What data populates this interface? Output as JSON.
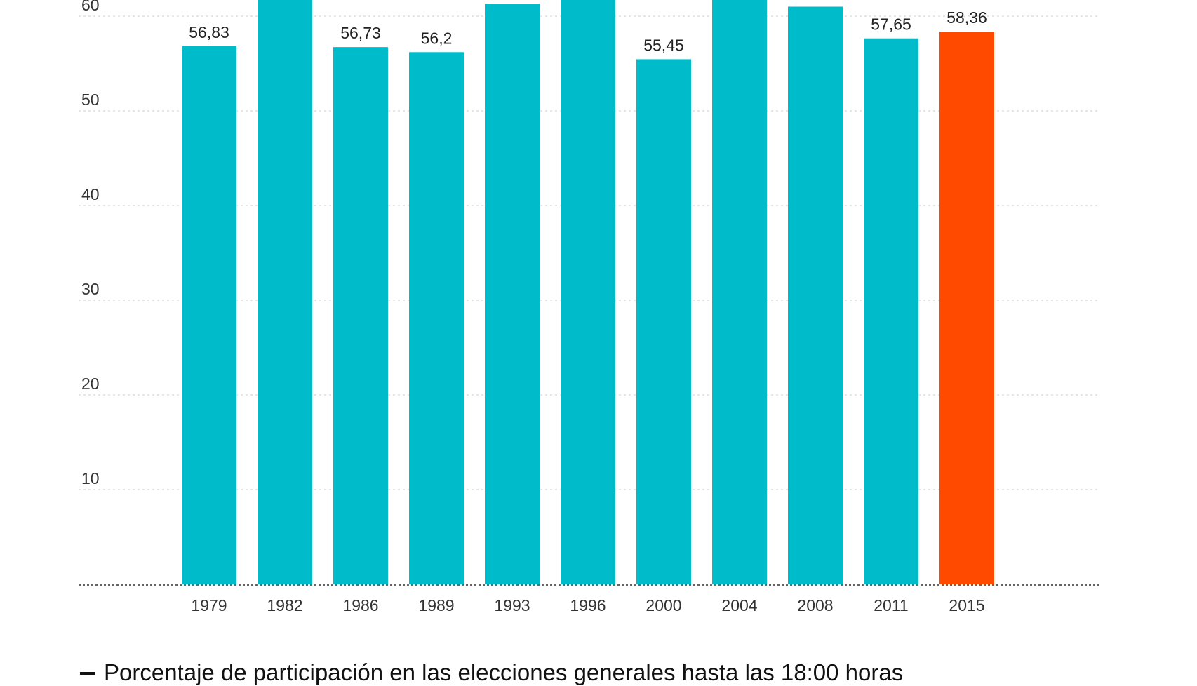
{
  "chart_data": {
    "type": "bar",
    "categories": [
      "1979",
      "1982",
      "1986",
      "1989",
      "1993",
      "1996",
      "2000",
      "2004",
      "2008",
      "2011",
      "2015"
    ],
    "values": [
      56.83,
      63.5,
      56.73,
      56.2,
      61.3,
      63.2,
      55.45,
      62.8,
      61.0,
      57.65,
      58.36
    ],
    "value_labels": [
      "56,83",
      "",
      "56,73",
      "56,2",
      "",
      "",
      "55,45",
      "",
      "",
      "57,65",
      "58,36"
    ],
    "yticks": [
      10,
      20,
      30,
      40,
      50,
      60
    ],
    "ylim": [
      0,
      62
    ],
    "grid": true,
    "colors": {
      "default_bar": "#00bccb",
      "highlight_bar": "#ff4a00",
      "grid": "#cccccc",
      "axis": "#333333"
    },
    "highlight_index": 10,
    "legend_text": "Porcentaje de participación en las elecciones generales hasta las 18:00 horas"
  }
}
